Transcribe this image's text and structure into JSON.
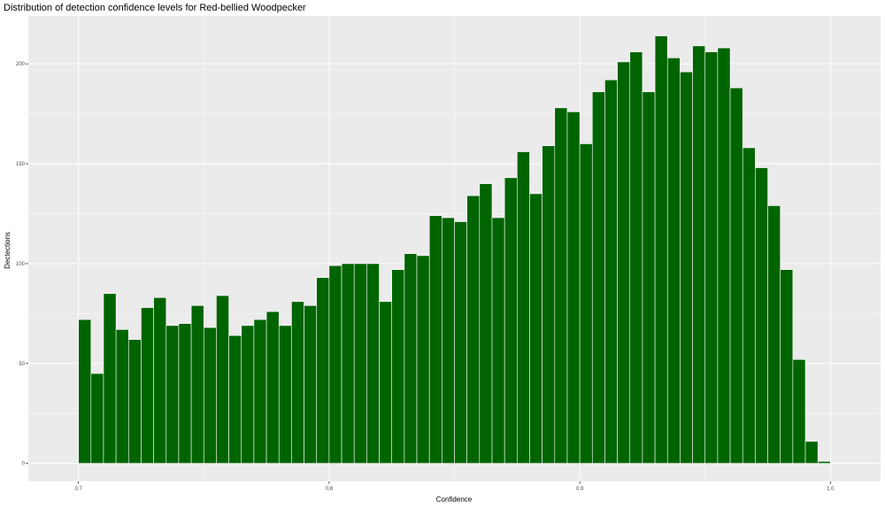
{
  "chart_data": {
    "type": "bar",
    "title": "Distribution of detection confidence levels for Red-bellied Woodpecker",
    "xlabel": "Confidence",
    "ylabel": "Dectections",
    "xlim": [
      0.68,
      1.02
    ],
    "ylim": [
      -9,
      224
    ],
    "bin_width": 0.005,
    "x_ticks": [
      0.7,
      0.8,
      0.9,
      1.0
    ],
    "x_tick_labels": [
      "0.7",
      "0.8",
      "0.9",
      "1.0"
    ],
    "y_ticks": [
      0,
      50,
      100,
      150,
      200
    ],
    "y_tick_labels": [
      "0",
      "50",
      "100",
      "150",
      "200"
    ],
    "grid": true,
    "bar_color": "#006400",
    "panel_background": "#ebebeb",
    "x": [
      0.7025,
      0.7075,
      0.7125,
      0.7175,
      0.7225,
      0.7275,
      0.7325,
      0.7375,
      0.7425,
      0.7475,
      0.7525,
      0.7575,
      0.7625,
      0.7675,
      0.7725,
      0.7775,
      0.7825,
      0.7875,
      0.7925,
      0.7975,
      0.8025,
      0.8075,
      0.8125,
      0.8175,
      0.8225,
      0.8275,
      0.8325,
      0.8375,
      0.8425,
      0.8475,
      0.8525,
      0.8575,
      0.8625,
      0.8675,
      0.8725,
      0.8775,
      0.8825,
      0.8875,
      0.8925,
      0.8975,
      0.9025,
      0.9075,
      0.9125,
      0.9175,
      0.9225,
      0.9275,
      0.9325,
      0.9375,
      0.9425,
      0.9475,
      0.9525,
      0.9575,
      0.9625,
      0.9675,
      0.9725,
      0.9775,
      0.9825,
      0.9875,
      0.9925,
      0.9975
    ],
    "values": [
      72,
      45,
      85,
      67,
      62,
      78,
      83,
      69,
      70,
      79,
      68,
      84,
      64,
      69,
      72,
      76,
      69,
      81,
      79,
      93,
      99,
      100,
      100,
      100,
      81,
      97,
      105,
      104,
      124,
      123,
      121,
      134,
      140,
      123,
      143,
      156,
      135,
      159,
      178,
      176,
      160,
      186,
      192,
      201,
      206,
      186,
      214,
      203,
      196,
      209,
      206,
      208,
      188,
      158,
      148,
      129,
      97,
      52,
      11,
      1
    ]
  }
}
